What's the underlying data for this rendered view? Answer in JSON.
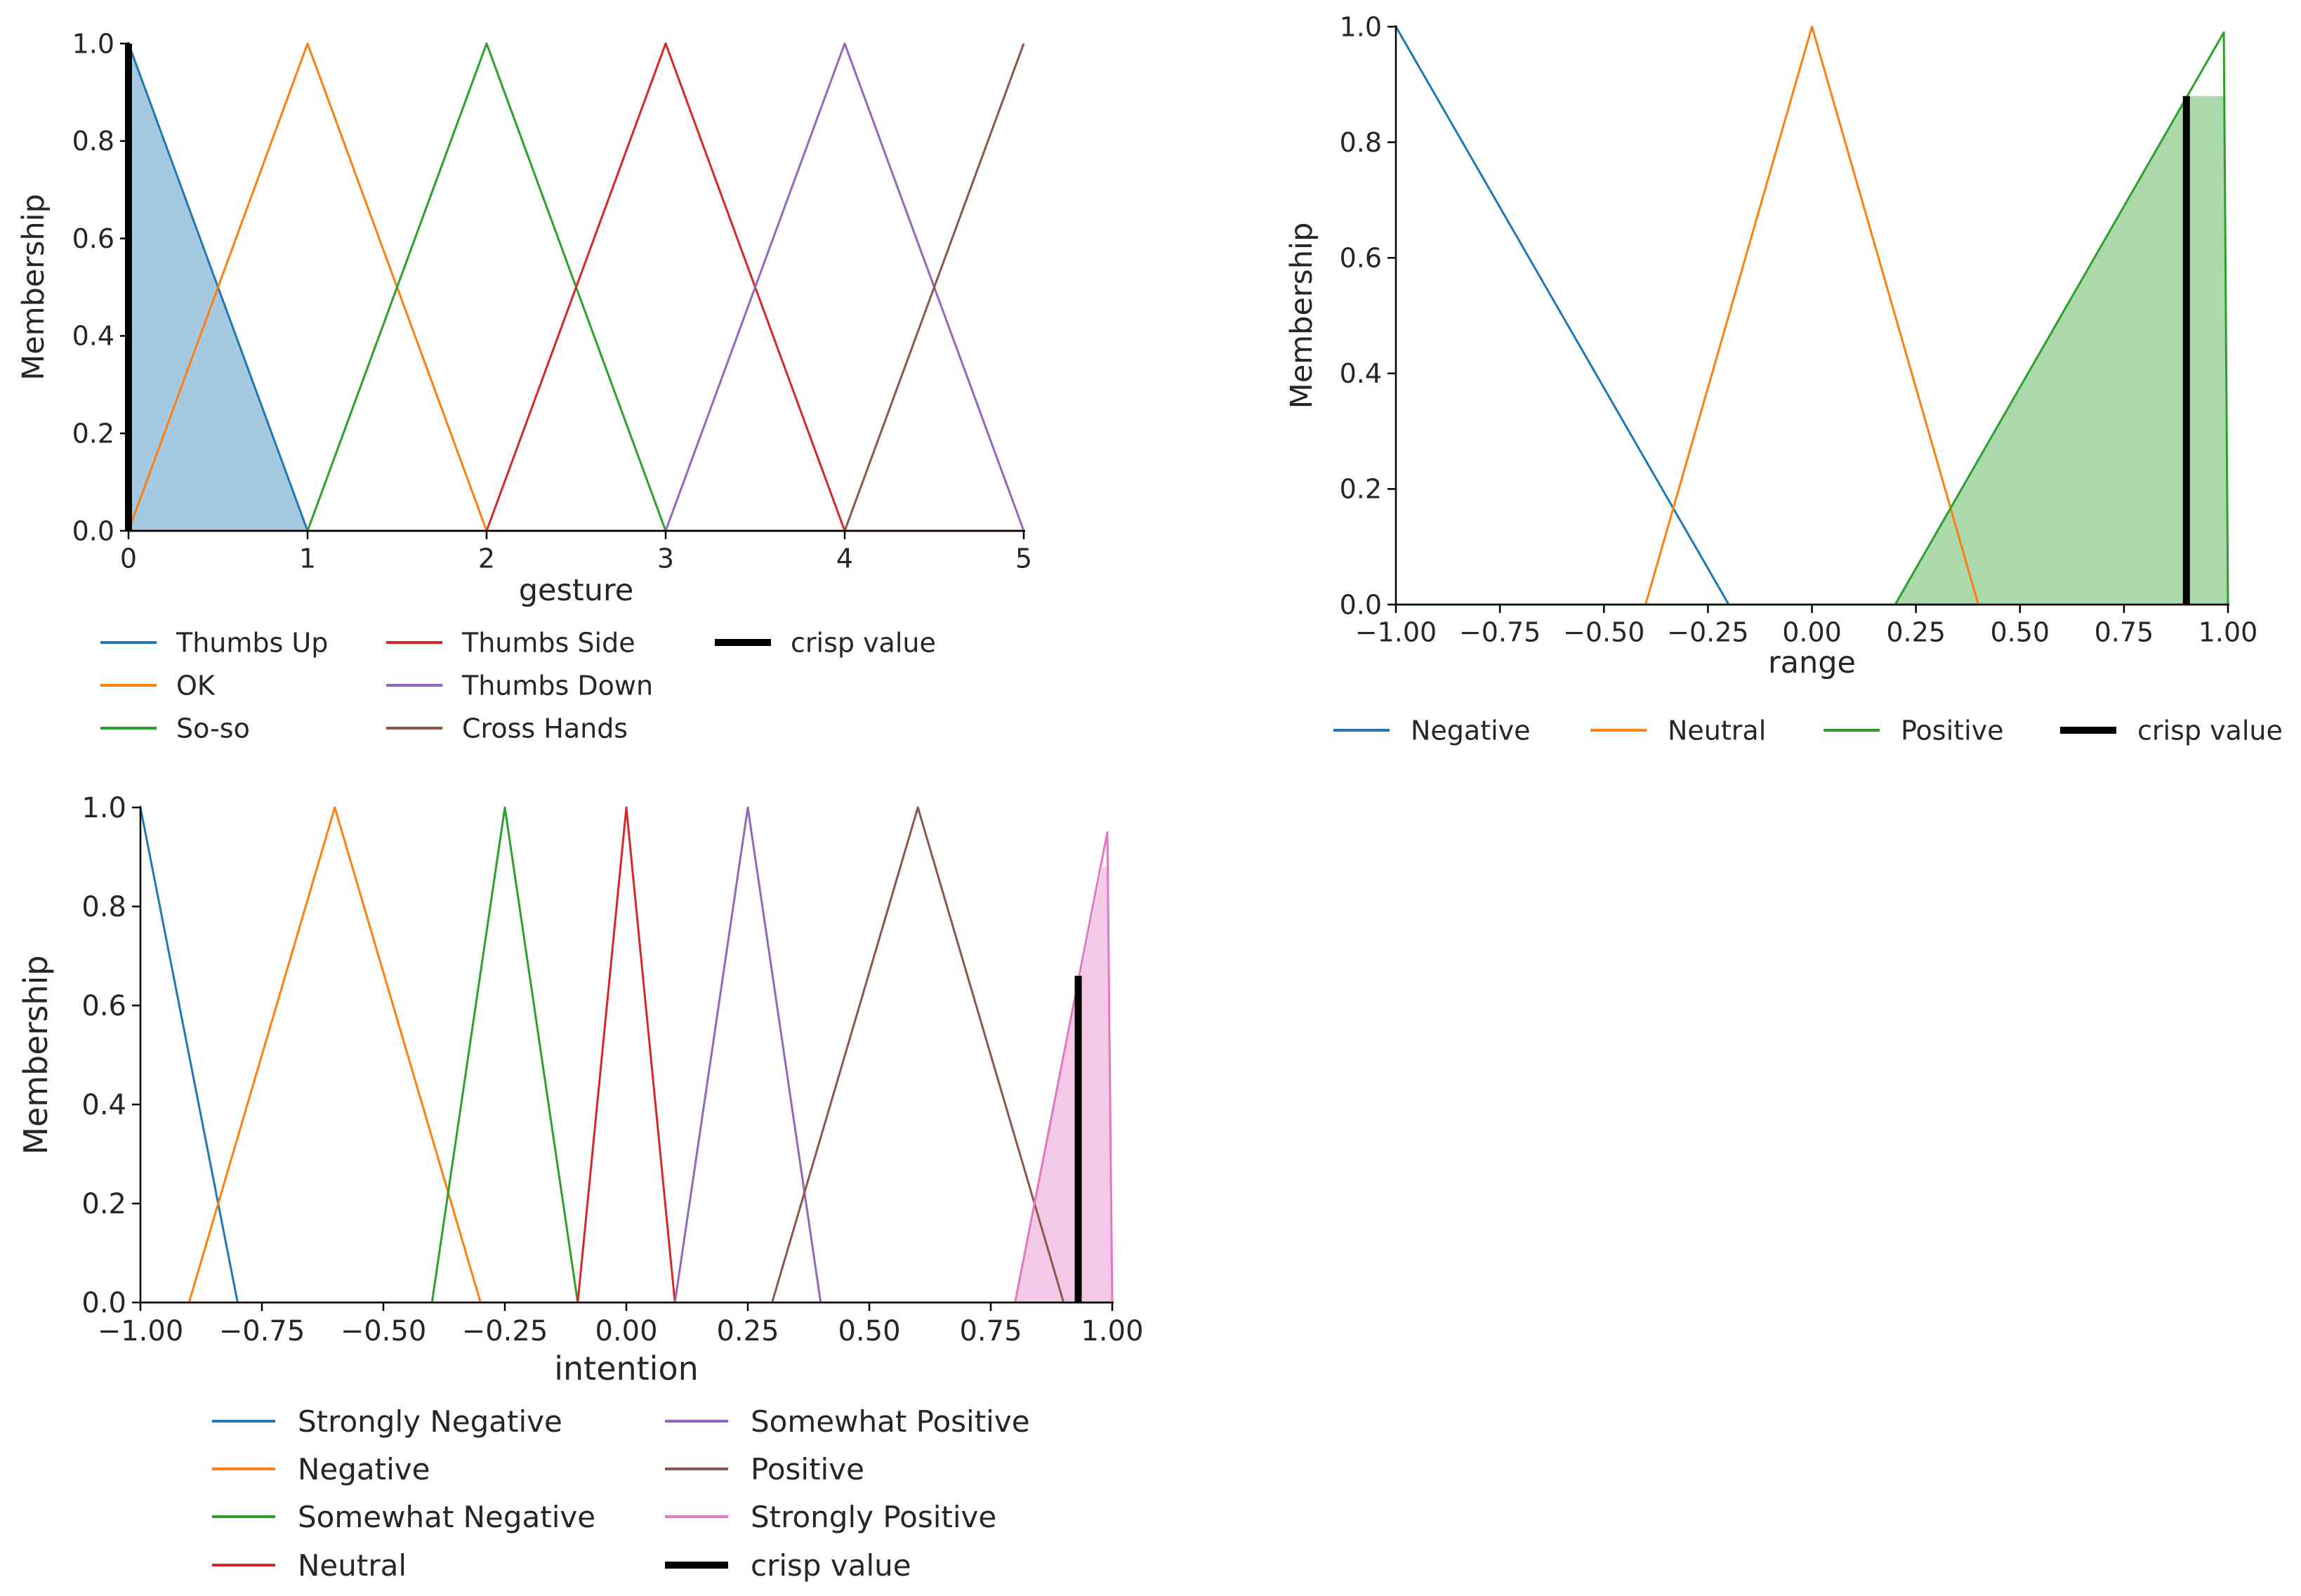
{
  "chart_data": [
    {
      "id": "gesture",
      "type": "line",
      "title": "",
      "xlabel": "gesture",
      "ylabel": "Membership",
      "xlim": [
        0,
        5
      ],
      "ylim": [
        0,
        1
      ],
      "xticks": [
        0,
        1,
        2,
        3,
        4,
        5
      ],
      "xtick_labels": [
        "0",
        "1",
        "2",
        "3",
        "4",
        "5"
      ],
      "yticks": [
        0,
        0.2,
        0.4,
        0.6,
        0.8,
        1.0
      ],
      "ytick_labels": [
        "0.0",
        "0.2",
        "0.4",
        "0.6",
        "0.8",
        "1.0"
      ],
      "grid": false,
      "legend_position": "below",
      "series": [
        {
          "name": "Thumbs Up",
          "color": "#1f77b4",
          "x": [
            0,
            1,
            5
          ],
          "y": [
            1,
            0,
            0
          ]
        },
        {
          "name": "OK",
          "color": "#ff7f0e",
          "x": [
            0,
            1,
            2,
            5
          ],
          "y": [
            0,
            1,
            0,
            0
          ]
        },
        {
          "name": "So-so",
          "color": "#2ca02c",
          "x": [
            0,
            1,
            2,
            3,
            5
          ],
          "y": [
            0,
            0,
            1,
            0,
            0
          ]
        },
        {
          "name": "Thumbs Side",
          "color": "#d62728",
          "x": [
            0,
            2,
            3,
            4,
            5
          ],
          "y": [
            0,
            0,
            1,
            0,
            0
          ]
        },
        {
          "name": "Thumbs Down",
          "color": "#9467bd",
          "x": [
            0,
            3,
            4,
            5
          ],
          "y": [
            0,
            0,
            1,
            0
          ]
        },
        {
          "name": "Cross Hands",
          "color": "#8c564b",
          "x": [
            0,
            4,
            5
          ],
          "y": [
            0,
            0,
            1
          ]
        }
      ],
      "fill": {
        "series": "Thumbs Up",
        "color": "#1f77b4",
        "x": [
          0,
          1
        ],
        "y": [
          1,
          0
        ]
      },
      "crisp_value": {
        "label": "crisp value",
        "x": 0.0,
        "y": 1.0,
        "color": "#000000"
      }
    },
    {
      "id": "range",
      "type": "line",
      "title": "",
      "xlabel": "range",
      "ylabel": "Membership",
      "xlim": [
        -1,
        1
      ],
      "ylim": [
        0,
        1
      ],
      "xticks": [
        -1,
        -0.75,
        -0.5,
        -0.25,
        0,
        0.25,
        0.5,
        0.75,
        1
      ],
      "xtick_labels": [
        "−1.00",
        "−0.75",
        "−0.50",
        "−0.25",
        "0.00",
        "0.25",
        "0.50",
        "0.75",
        "1.00"
      ],
      "yticks": [
        0,
        0.2,
        0.4,
        0.6,
        0.8,
        1.0
      ],
      "ytick_labels": [
        "0.0",
        "0.2",
        "0.4",
        "0.6",
        "0.8",
        "1.0"
      ],
      "grid": false,
      "legend_position": "below",
      "series": [
        {
          "name": "Negative",
          "color": "#1f77b4",
          "x": [
            -1,
            -0.2,
            1
          ],
          "y": [
            1,
            0,
            0
          ]
        },
        {
          "name": "Neutral",
          "color": "#ff7f0e",
          "x": [
            -1,
            -0.4,
            0,
            0.4,
            1
          ],
          "y": [
            0,
            0,
            1,
            0,
            0
          ]
        },
        {
          "name": "Positive",
          "color": "#2ca02c",
          "x": [
            -1,
            0.2,
            0.99,
            1.0
          ],
          "y": [
            0,
            0,
            0.99,
            0
          ]
        }
      ],
      "fill": {
        "series": "Positive",
        "color": "#2ca02c",
        "x": [
          0.2,
          0.9,
          0.99,
          0.99,
          1.0
        ],
        "y": [
          0,
          0.88,
          0.88,
          0.88,
          0
        ]
      },
      "crisp_value": {
        "label": "crisp value",
        "x": 0.9,
        "y": 0.88,
        "color": "#000000"
      }
    },
    {
      "id": "intention",
      "type": "line",
      "title": "",
      "xlabel": "intention",
      "ylabel": "Membership",
      "xlim": [
        -1,
        1
      ],
      "ylim": [
        0,
        1
      ],
      "xticks": [
        -1,
        -0.75,
        -0.5,
        -0.25,
        0,
        0.25,
        0.5,
        0.75,
        1
      ],
      "xtick_labels": [
        "−1.00",
        "−0.75",
        "−0.50",
        "−0.25",
        "0.00",
        "0.25",
        "0.50",
        "0.75",
        "1.00"
      ],
      "yticks": [
        0,
        0.2,
        0.4,
        0.6,
        0.8,
        1.0
      ],
      "ytick_labels": [
        "0.0",
        "0.2",
        "0.4",
        "0.6",
        "0.8",
        "1.0"
      ],
      "grid": false,
      "legend_position": "below",
      "series": [
        {
          "name": "Strongly Negative",
          "color": "#1f77b4",
          "x": [
            -1,
            -0.8,
            1
          ],
          "y": [
            1,
            0,
            0
          ]
        },
        {
          "name": "Negative",
          "color": "#ff7f0e",
          "x": [
            -1,
            -0.9,
            -0.6,
            -0.3,
            1
          ],
          "y": [
            0,
            0,
            1,
            0,
            0
          ]
        },
        {
          "name": "Somewhat Negative",
          "color": "#2ca02c",
          "x": [
            -1,
            -0.4,
            -0.25,
            -0.1,
            1
          ],
          "y": [
            0,
            0,
            1,
            0,
            0
          ]
        },
        {
          "name": "Neutral",
          "color": "#d62728",
          "x": [
            -1,
            -0.1,
            0,
            0.1,
            1
          ],
          "y": [
            0,
            0,
            1,
            0,
            0
          ]
        },
        {
          "name": "Somewhat Positive",
          "color": "#9467bd",
          "x": [
            -1,
            0.1,
            0.25,
            0.4,
            1
          ],
          "y": [
            0,
            0,
            1,
            0,
            0
          ]
        },
        {
          "name": "Positive",
          "color": "#8c564b",
          "x": [
            -1,
            0.3,
            0.6,
            0.9,
            1
          ],
          "y": [
            0,
            0,
            1,
            0,
            0
          ]
        },
        {
          "name": "Strongly Positive",
          "color": "#e377c2",
          "x": [
            -1,
            0.8,
            0.99,
            1.0
          ],
          "y": [
            0,
            0,
            0.95,
            0
          ]
        }
      ],
      "fill": {
        "series": "Strongly Positive",
        "color": "#e377c2",
        "x": [
          0.8,
          0.98,
          0.99,
          0.99,
          1.0
        ],
        "y": [
          0,
          0.88,
          0.88,
          0.88,
          0
        ]
      },
      "crisp_value": {
        "label": "crisp value",
        "x": 0.93,
        "y": 0.66,
        "color": "#000000"
      }
    }
  ]
}
